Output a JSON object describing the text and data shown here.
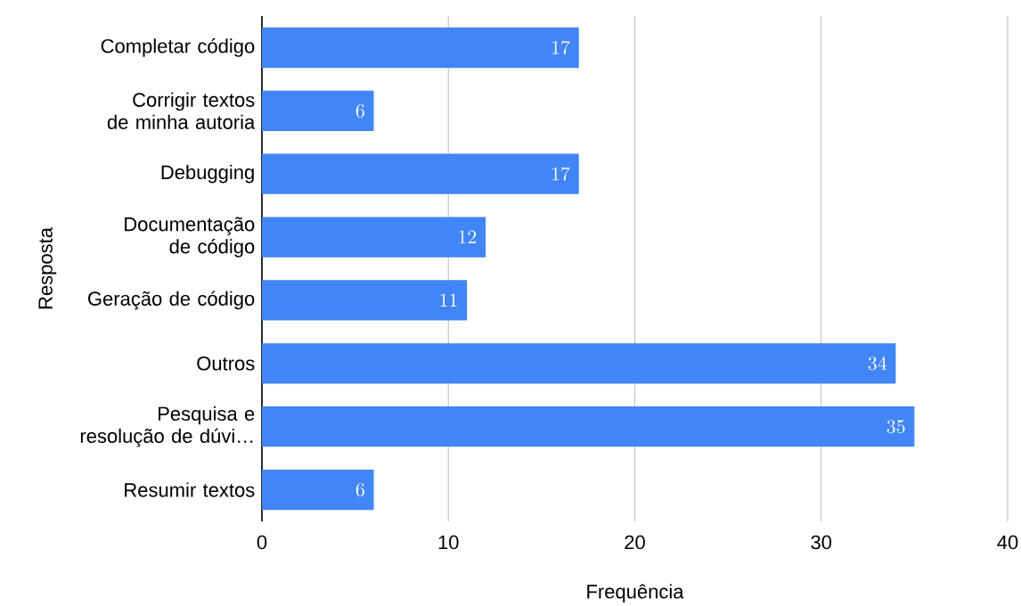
{
  "chart_data": {
    "type": "bar",
    "orientation": "horizontal",
    "xlabel": "Frequência",
    "ylabel": "Resposta",
    "categories": [
      "Completar código",
      "Corrigir textos de minha autoria",
      "Debugging",
      "Documentação de código",
      "Geração de código",
      "Outros",
      "Pesquisa e resolução de dúvi…",
      "Resumir textos"
    ],
    "values": [
      17,
      6,
      17,
      12,
      11,
      34,
      35,
      6
    ],
    "color": "#4285f4",
    "xlim": [
      0,
      40
    ],
    "xticks": [
      0,
      10,
      20,
      30,
      40
    ],
    "grid": "x",
    "data_labels": true
  }
}
